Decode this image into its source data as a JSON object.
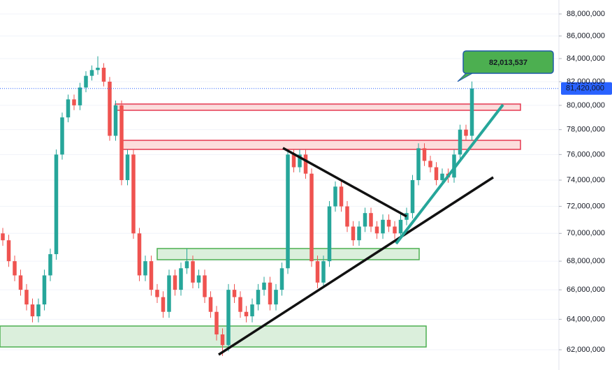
{
  "chart_data": {
    "type": "candlestick",
    "log_scale": true,
    "grid": true,
    "up_color": "#26a69a",
    "down_color": "#ef5350",
    "ylim": [
      61500000,
      89000000
    ],
    "yticks": [
      {
        "value": 62000000,
        "label": "62,000,000"
      },
      {
        "value": 64000000,
        "label": "64,000,000"
      },
      {
        "value": 66000000,
        "label": "66,000,000"
      },
      {
        "value": 68000000,
        "label": "68,000,000"
      },
      {
        "value": 70000000,
        "label": "70,000,000"
      },
      {
        "value": 72000000,
        "label": "72,000,000"
      },
      {
        "value": 74000000,
        "label": "74,000,000"
      },
      {
        "value": 76000000,
        "label": "76,000,000"
      },
      {
        "value": 78000000,
        "label": "78,000,000"
      },
      {
        "value": 80000000,
        "label": "80,000,000"
      },
      {
        "value": 82000000,
        "label": "82,000,000"
      },
      {
        "value": 84000000,
        "label": "84,000,000"
      },
      {
        "value": 86000000,
        "label": "86,000,000"
      },
      {
        "value": 88000000,
        "label": "88,000,000"
      }
    ],
    "last_price": {
      "value": 81420000,
      "label": "81,420,000",
      "color": "#2962ff"
    },
    "annotation": {
      "value": 82013537,
      "label": "82,013,537",
      "color": "#4caf50"
    },
    "open": [
      70000000,
      69500000,
      68000000,
      67000000,
      66000000,
      65000000,
      64200000,
      65000000,
      67000000,
      68500000,
      76000000,
      79000000,
      80500000,
      80000000,
      81500000,
      82500000,
      83000000,
      83200000,
      82000000,
      77500000,
      80000000,
      74000000,
      76000000,
      70000000,
      67000000,
      68000000,
      66000000,
      65500000,
      64500000,
      67000000,
      66000000,
      67500000,
      68000000,
      66500000,
      67000000,
      65500000,
      64500000,
      63000000,
      62300000,
      66000000,
      65500000,
      64500000,
      64200000,
      65000000,
      66000000,
      66500000,
      65000000,
      66000000,
      67500000,
      76000000,
      75000000,
      76000000,
      74500000,
      68000000,
      66500000,
      68000000,
      72000000,
      73500000,
      72000000,
      70500000,
      69500000,
      70500000,
      71500000,
      70500000,
      70000000,
      71000000,
      70500000,
      70000000,
      71000000,
      71500000,
      74000000,
      76500000,
      75500000,
      75000000,
      74000000,
      74500000,
      74200000,
      76000000,
      78000000,
      77500000
    ],
    "high": [
      70400000,
      69900000,
      68400000,
      67400000,
      66400000,
      65400000,
      65400000,
      67400000,
      68900000,
      76400000,
      79400000,
      80900000,
      80900000,
      81900000,
      82900000,
      83400000,
      84200000,
      83600000,
      82400000,
      80400000,
      80400000,
      76400000,
      76400000,
      70400000,
      68400000,
      68400000,
      66400000,
      65900000,
      67400000,
      67400000,
      67900000,
      68900000,
      68400000,
      67400000,
      67400000,
      65900000,
      64900000,
      63400000,
      66400000,
      66400000,
      65900000,
      64900000,
      65400000,
      66400000,
      66900000,
      66900000,
      66400000,
      67900000,
      76400000,
      76400000,
      76400000,
      76400000,
      74900000,
      68400000,
      68400000,
      72400000,
      73900000,
      73900000,
      72400000,
      70900000,
      70900000,
      71900000,
      71900000,
      70900000,
      71400000,
      71400000,
      70900000,
      71400000,
      71900000,
      74400000,
      76900000,
      76900000,
      75900000,
      75400000,
      74900000,
      74900000,
      76400000,
      78400000,
      78400000,
      82013537
    ],
    "low": [
      69100000,
      67600000,
      66600000,
      65600000,
      64600000,
      63800000,
      63800000,
      64600000,
      66600000,
      68100000,
      75600000,
      78600000,
      79600000,
      79600000,
      81100000,
      82100000,
      82600000,
      81600000,
      77100000,
      77100000,
      73600000,
      73600000,
      69600000,
      66600000,
      66600000,
      65600000,
      65100000,
      64100000,
      64100000,
      65600000,
      65600000,
      67100000,
      66100000,
      66100000,
      65100000,
      64100000,
      62600000,
      61600000,
      61900000,
      65100000,
      64100000,
      63800000,
      63800000,
      64600000,
      65600000,
      64600000,
      64600000,
      65600000,
      67100000,
      74600000,
      74600000,
      74100000,
      67600000,
      66100000,
      66100000,
      67600000,
      71600000,
      71600000,
      70100000,
      69100000,
      69100000,
      70100000,
      70100000,
      69600000,
      69600000,
      70100000,
      69600000,
      69600000,
      70600000,
      71100000,
      73600000,
      75100000,
      74600000,
      73600000,
      73600000,
      73800000,
      73800000,
      75600000,
      77100000,
      77100000
    ],
    "close": [
      69500000,
      68000000,
      67000000,
      66000000,
      65000000,
      64200000,
      65000000,
      67000000,
      68500000,
      76000000,
      79000000,
      80500000,
      80000000,
      81500000,
      82500000,
      83000000,
      83200000,
      82000000,
      77500000,
      80000000,
      74000000,
      76000000,
      70000000,
      67000000,
      68000000,
      66000000,
      65500000,
      64500000,
      67000000,
      66000000,
      67500000,
      68000000,
      66500000,
      67000000,
      65500000,
      64500000,
      63000000,
      62300000,
      66000000,
      65500000,
      64500000,
      64200000,
      65000000,
      66000000,
      66500000,
      65000000,
      66000000,
      67500000,
      76000000,
      75000000,
      76000000,
      74500000,
      68000000,
      66500000,
      68000000,
      72000000,
      73500000,
      72000000,
      70500000,
      69500000,
      70500000,
      71500000,
      70500000,
      70000000,
      71000000,
      70500000,
      70000000,
      71000000,
      71500000,
      74000000,
      76500000,
      75500000,
      75000000,
      74000000,
      74500000,
      74200000,
      76000000,
      78000000,
      77500000,
      81420000
    ]
  }
}
